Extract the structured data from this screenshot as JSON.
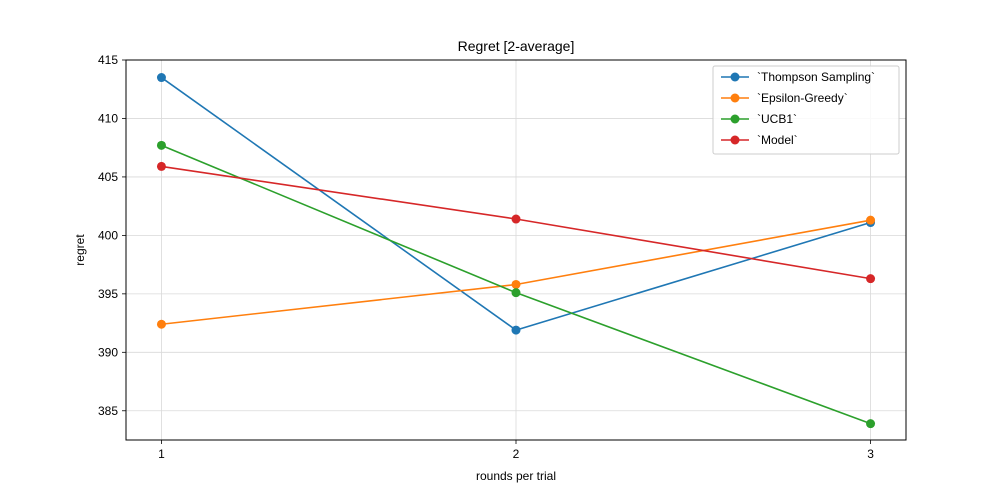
{
  "chart_data": {
    "type": "line",
    "title": "Regret [2-average]",
    "xlabel": "rounds per trial",
    "ylabel": "regret",
    "x": [
      1,
      2,
      3
    ],
    "x_ticks": [
      "1",
      "2",
      "3"
    ],
    "xlim": [
      0.9,
      3.1
    ],
    "ylim": [
      382.5,
      415
    ],
    "y_ticks": [
      385,
      390,
      395,
      400,
      405,
      410,
      415
    ],
    "grid": true,
    "legend_position": "top-right",
    "series": [
      {
        "name": "`Thompson Sampling`",
        "color": "#1f77b4",
        "values": [
          413.5,
          391.9,
          401.1
        ]
      },
      {
        "name": "`Epsilon-Greedy`",
        "color": "#ff7f0e",
        "values": [
          392.4,
          395.8,
          401.3
        ]
      },
      {
        "name": "`UCB1`",
        "color": "#2ca02c",
        "values": [
          407.7,
          395.1,
          383.9
        ]
      },
      {
        "name": "`Model`",
        "color": "#d62728",
        "values": [
          405.9,
          401.4,
          396.3
        ]
      }
    ]
  }
}
